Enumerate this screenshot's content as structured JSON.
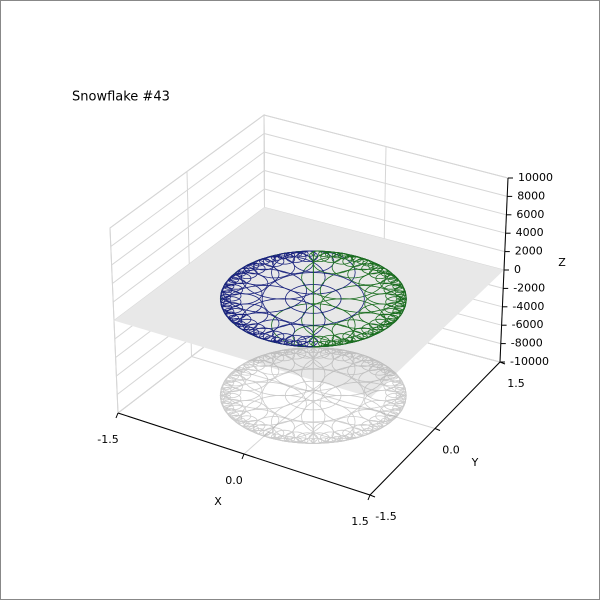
{
  "chart_data": {
    "type": "surface3d",
    "title": "Snowflake #43",
    "xlabel": "X",
    "ylabel": "Y",
    "zlabel": "Z",
    "xlim": [
      -1.5,
      1.5
    ],
    "ylim": [
      -1.5,
      1.5
    ],
    "zlim": [
      -10000,
      10000
    ],
    "xticks": [
      -1.5,
      {
        "value": 0,
        "label": "0.0"
      },
      1.5
    ],
    "yticks": [
      -1.5,
      {
        "value": 0,
        "label": "0.0"
      },
      1.5
    ],
    "zticks": [
      -10000,
      -8000,
      -6000,
      -4000,
      -2000,
      0,
      2000,
      4000,
      6000,
      8000,
      10000
    ],
    "colors": [
      "#1a237e",
      "#1b6e20"
    ],
    "grid": true
  }
}
